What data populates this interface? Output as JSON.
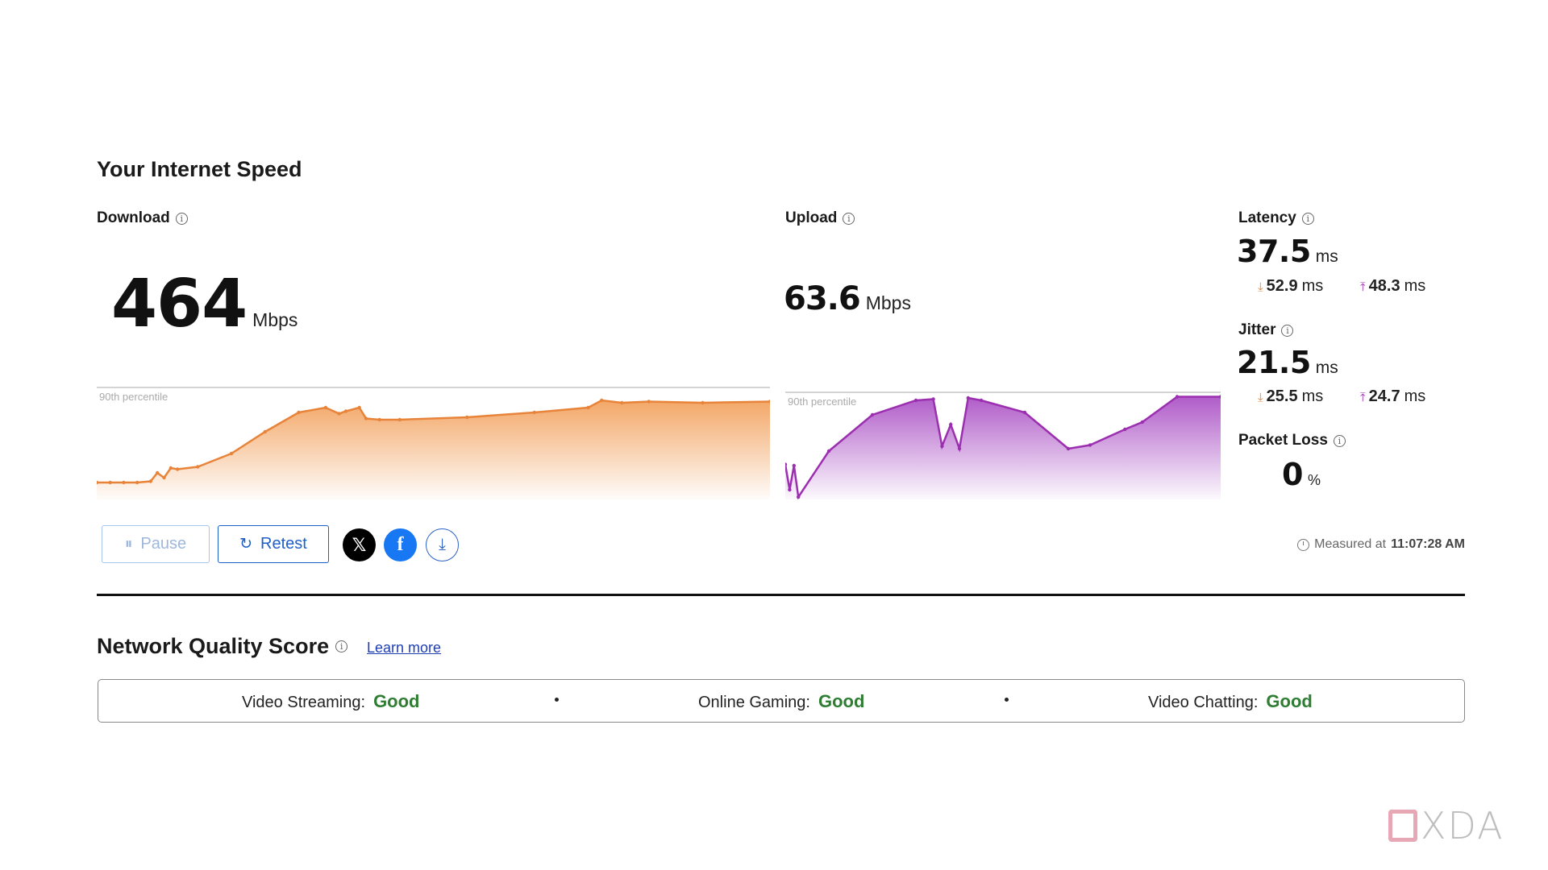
{
  "page": {
    "title": "Your Internet Speed"
  },
  "download": {
    "label": "Download",
    "value": "464",
    "unit": "Mbps",
    "percentile_label": "90th percentile",
    "color": "#f2a25f"
  },
  "upload": {
    "label": "Upload",
    "value": "63.6",
    "unit": "Mbps",
    "percentile_label": "90th percentile",
    "color": "#a23fbf"
  },
  "latency": {
    "label": "Latency",
    "value": "37.5",
    "unit": "ms",
    "down_value": "52.9",
    "down_unit": "ms",
    "up_value": "48.3",
    "up_unit": "ms"
  },
  "jitter": {
    "label": "Jitter",
    "value": "21.5",
    "unit": "ms",
    "down_value": "25.5",
    "down_unit": "ms",
    "up_value": "24.7",
    "up_unit": "ms"
  },
  "packet_loss": {
    "label": "Packet Loss",
    "value": "0",
    "unit": "%"
  },
  "actions": {
    "pause_label": "Pause",
    "retest_label": "Retest",
    "share_x_icon": "x-logo-icon",
    "share_facebook_icon": "facebook-icon",
    "download_icon": "download-icon"
  },
  "measured": {
    "prefix": "Measured at",
    "time": "11:07:28 AM"
  },
  "network_quality": {
    "title": "Network Quality Score",
    "learn_more": "Learn more",
    "items": [
      {
        "label": "Video Streaming:",
        "rating": "Good"
      },
      {
        "label": "Online Gaming:",
        "rating": "Good"
      },
      {
        "label": "Video Chatting:",
        "rating": "Good"
      }
    ],
    "good_color": "#2e7d32"
  },
  "watermark": {
    "text": "XDA"
  },
  "chart_data": [
    {
      "type": "area",
      "series": [
        {
          "name": "Download",
          "x": [
            0,
            2,
            4,
            6,
            8,
            9,
            10,
            11,
            12,
            15,
            20,
            25,
            30,
            34,
            36,
            37,
            39,
            40,
            42,
            45,
            55,
            65,
            73,
            75,
            78,
            82,
            90,
            100
          ],
          "y": [
            14,
            14,
            14,
            14,
            15,
            22,
            18,
            26,
            25,
            27,
            38,
            56,
            72,
            76,
            71,
            73,
            76,
            67,
            66,
            66,
            68,
            72,
            76,
            82,
            80,
            81,
            80,
            81
          ]
        }
      ]
    },
    {
      "type": "area",
      "series": [
        {
          "name": "Upload",
          "x": [
            0,
            1,
            2,
            3,
            10,
            20,
            30,
            34,
            36,
            38,
            40,
            42,
            45,
            55,
            65,
            70,
            78,
            82,
            90,
            100
          ],
          "y": [
            29,
            8,
            28,
            2,
            40,
            70,
            82,
            83,
            44,
            62,
            42,
            84,
            82,
            72,
            42,
            45,
            58,
            64,
            85,
            85
          ]
        }
      ]
    }
  ]
}
